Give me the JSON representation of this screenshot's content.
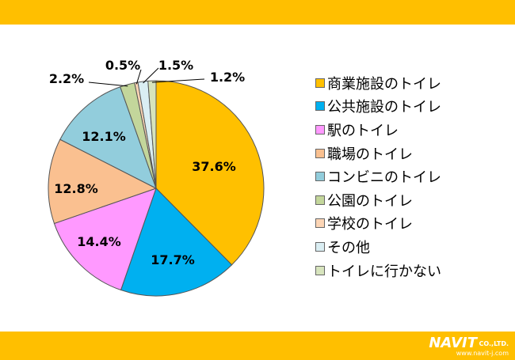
{
  "colors": {
    "band": "#FFBF00",
    "logo_text": "#FFFFFF"
  },
  "logo": {
    "name": "NAVIT",
    "suffix": "CO.,LTD.",
    "url": "www.navit-j.com"
  },
  "chart_data": {
    "type": "pie",
    "title": "",
    "start_angle_deg": 0,
    "direction": "clockwise",
    "legend_position": "right",
    "categories": [
      "商業施設のトイレ",
      "公共施設のトイレ",
      "駅のトイレ",
      "職場のトイレ",
      "コンビニのトイレ",
      "公園のトイレ",
      "学校のトイレ",
      "その他",
      "トイレに行かない"
    ],
    "values": [
      37.6,
      17.7,
      14.4,
      12.8,
      12.1,
      2.2,
      0.5,
      1.5,
      1.2
    ],
    "labels": [
      "37.6%",
      "17.7%",
      "14.4%",
      "12.8%",
      "12.1%",
      "2.2%",
      "0.5%",
      "1.5%",
      "1.2%"
    ],
    "colors": [
      "#FFC000",
      "#00B0F0",
      "#FF99FF",
      "#FAC090",
      "#92CDDC",
      "#C3D69B",
      "#FCD5B5",
      "#DAEEF3",
      "#D7E4BD"
    ]
  }
}
